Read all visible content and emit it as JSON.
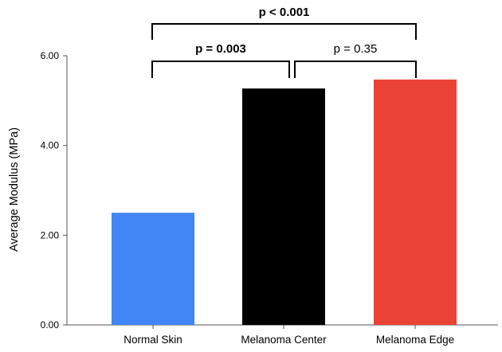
{
  "chart_data": {
    "type": "bar",
    "title": "",
    "xlabel": "",
    "ylabel": "Average Modulus (MPa)",
    "categories": [
      "Normal Skin",
      "Melanoma Center",
      "Melanoma Edge"
    ],
    "values": [
      2.5,
      5.27,
      5.47
    ],
    "colors": [
      "#4285f4",
      "#000000",
      "#ea4335"
    ],
    "ylim": [
      0,
      6
    ],
    "yticks": [
      "0.00",
      "2.00",
      "4.00",
      "6.00"
    ],
    "grid": false,
    "legend": "none",
    "annotations": [
      {
        "label": "p = 0.003",
        "from": 0,
        "to": 1,
        "bold": true
      },
      {
        "label": "p = 0.35",
        "from": 1,
        "to": 2,
        "bold": false
      },
      {
        "label": "p < 0.001",
        "from": 0,
        "to": 2,
        "bold": true
      }
    ]
  }
}
